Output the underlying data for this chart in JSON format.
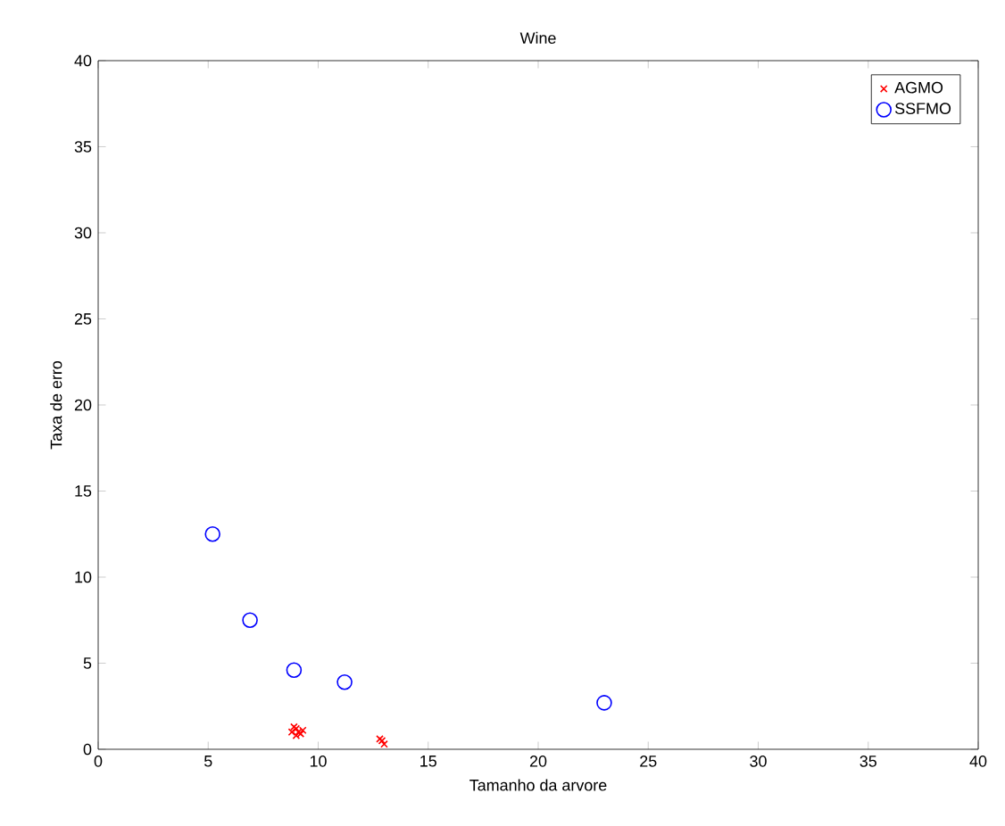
{
  "chart_data": {
    "type": "scatter",
    "title": "Wine",
    "xlabel": "Tamanho da arvore",
    "ylabel": "Taxa de erro",
    "xlim": [
      0,
      40
    ],
    "ylim": [
      0,
      40
    ],
    "xticks": [
      0,
      5,
      10,
      15,
      20,
      25,
      30,
      35,
      40
    ],
    "yticks": [
      0,
      5,
      10,
      15,
      20,
      25,
      30,
      35,
      40
    ],
    "legend": "top right",
    "grid": false,
    "series": [
      {
        "name": "AGMO",
        "color": "#ff0000",
        "marker": "cross",
        "x": [
          8.8,
          9.0,
          9.2,
          9.0,
          9.3,
          8.9,
          9.1,
          12.8,
          13.0,
          12.9
        ],
        "values": [
          1.0,
          1.2,
          0.9,
          0.8,
          1.1,
          1.3,
          1.0,
          0.6,
          0.3,
          0.5
        ]
      },
      {
        "name": "SSFMO",
        "color": "#0000ff",
        "marker": "circle",
        "x": [
          5.2,
          6.9,
          8.9,
          11.2,
          23.0
        ],
        "values": [
          12.5,
          7.5,
          4.6,
          3.9,
          2.7
        ]
      }
    ]
  }
}
